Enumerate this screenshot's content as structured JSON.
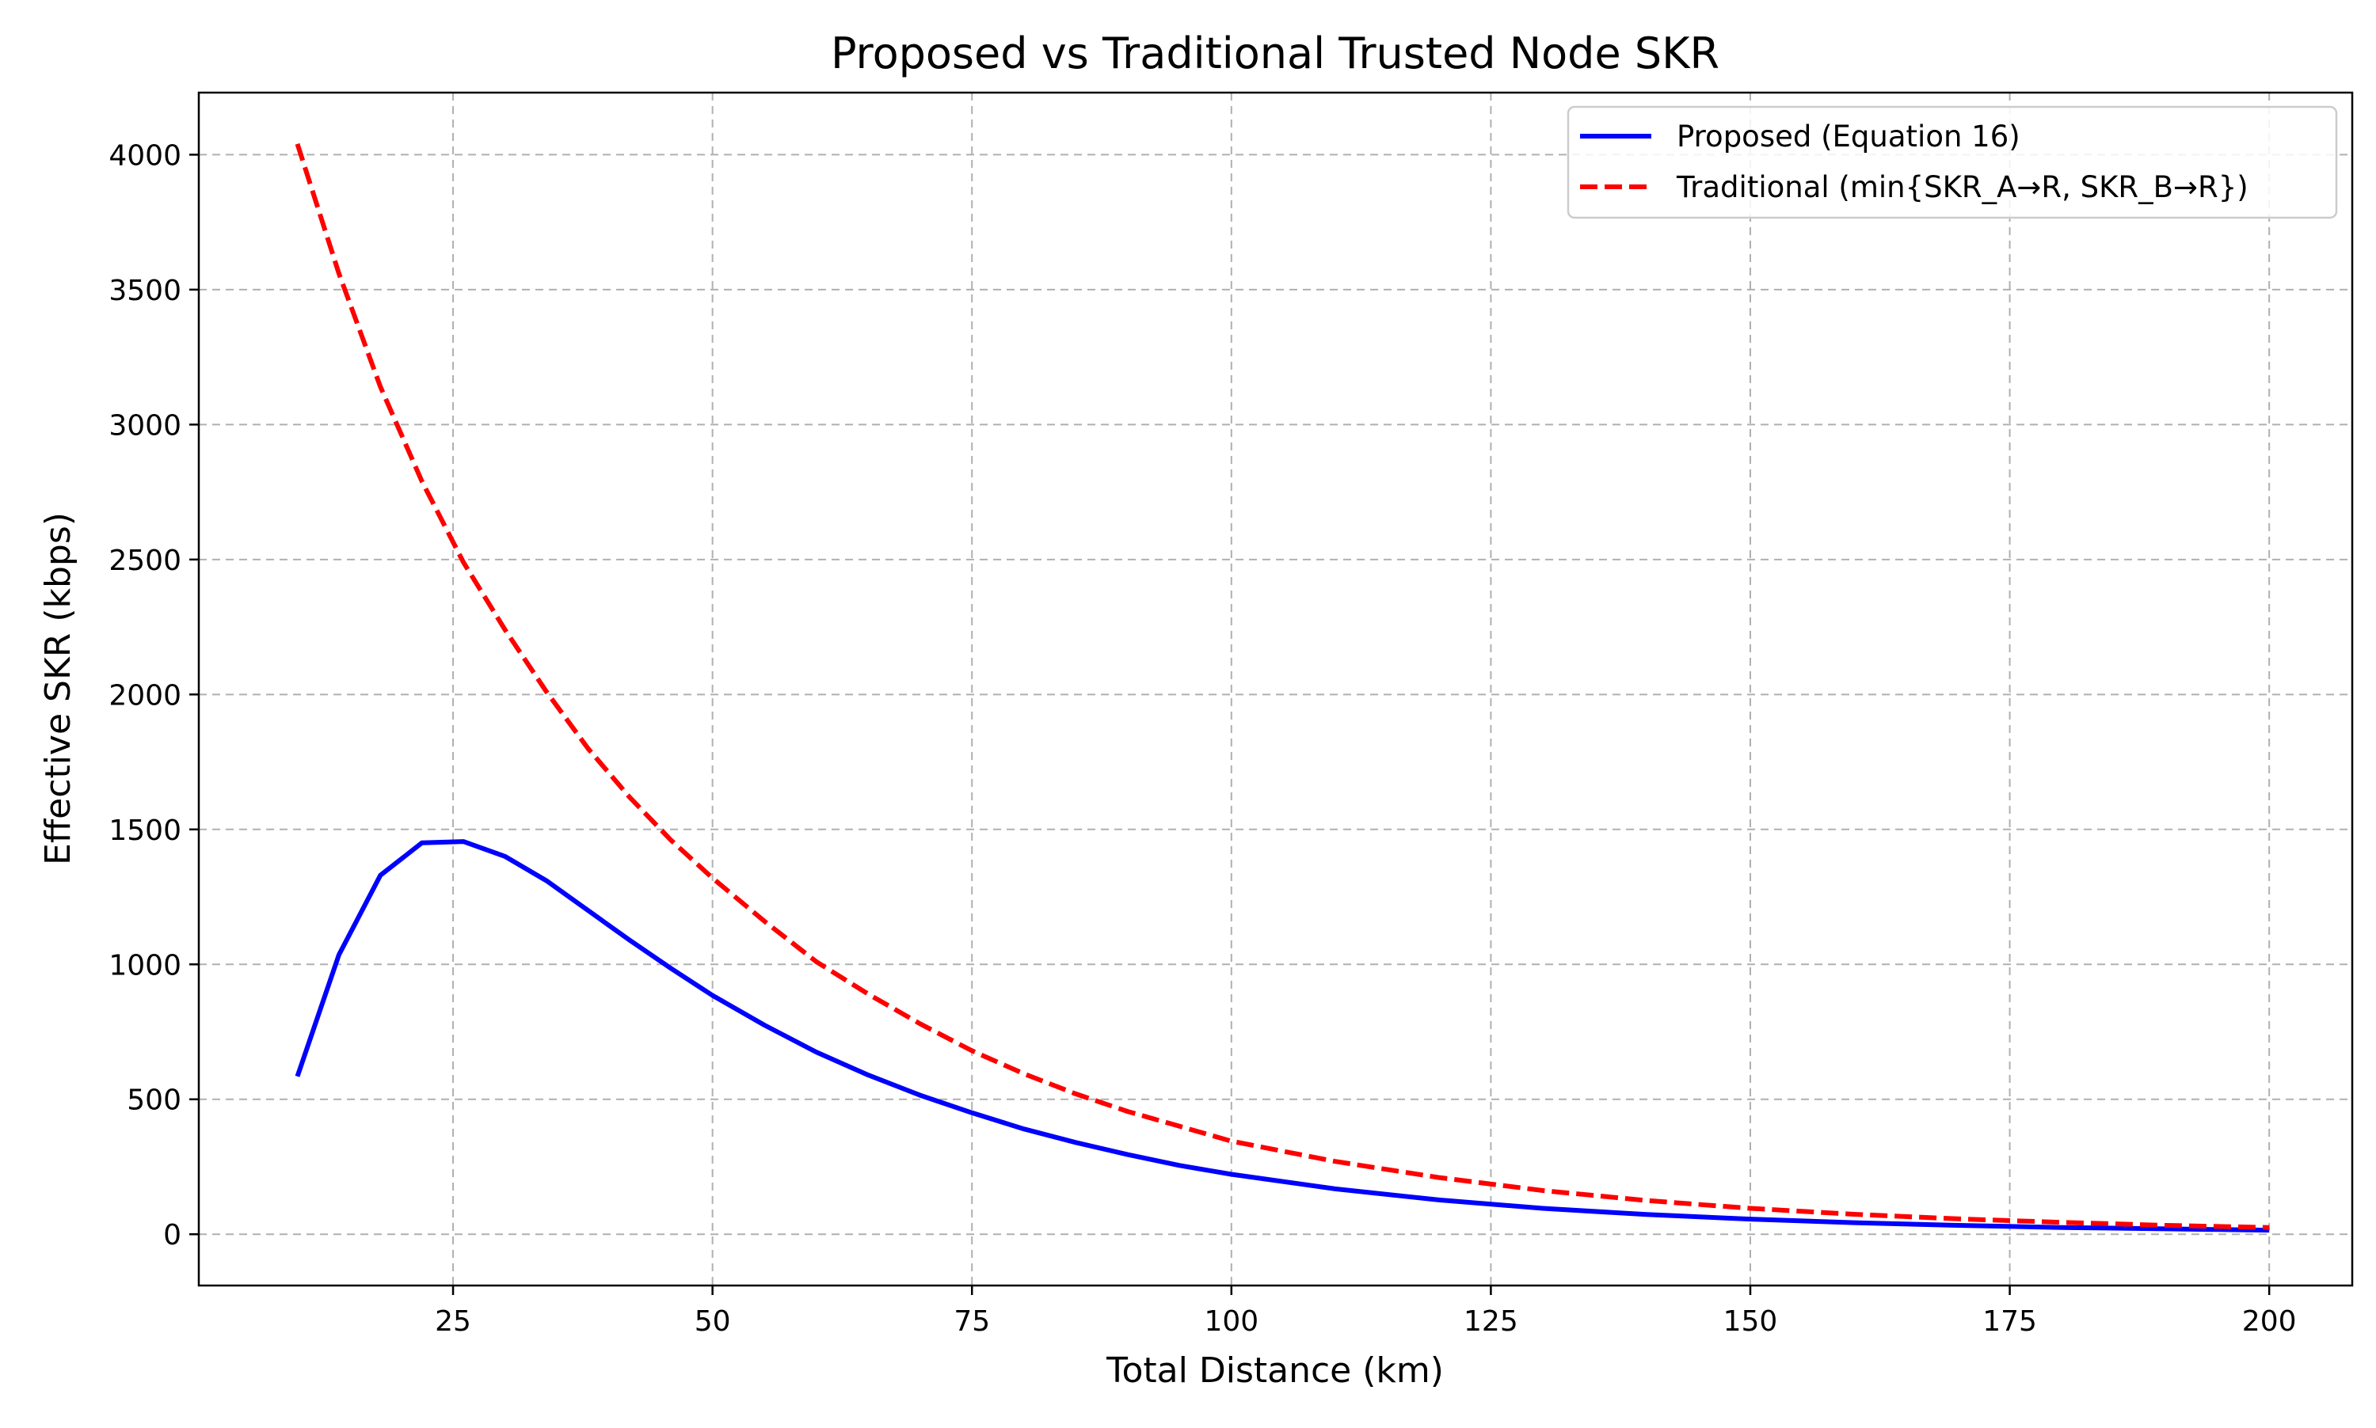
{
  "chart_data": {
    "type": "line",
    "title": "Proposed vs Traditional Trusted Node SKR",
    "xlabel": "Total Distance (km)",
    "ylabel": "Effective SKR (kbps)",
    "xlim": [
      0.5,
      208
    ],
    "ylim": [
      -190,
      4230
    ],
    "xticks": [
      25,
      50,
      75,
      100,
      125,
      150,
      175,
      200
    ],
    "yticks": [
      0,
      500,
      1000,
      1500,
      2000,
      2500,
      3000,
      3500,
      4000
    ],
    "grid": true,
    "legend_position": "top-right",
    "series": [
      {
        "name": "Proposed (Equation 16)",
        "color": "#0000ff",
        "line_style": "solid",
        "x": [
          10,
          14,
          18,
          22,
          26,
          30,
          34,
          38,
          42,
          46,
          50,
          55,
          60,
          65,
          70,
          75,
          80,
          85,
          90,
          95,
          100,
          110,
          120,
          130,
          140,
          150,
          160,
          170,
          180,
          190,
          200
        ],
        "y": [
          585,
          1035,
          1330,
          1450,
          1455,
          1400,
          1310,
          1200,
          1090,
          985,
          885,
          775,
          675,
          590,
          515,
          450,
          390,
          340,
          295,
          255,
          222,
          168,
          127,
          96,
          73,
          56,
          43,
          33,
          25,
          20,
          15
        ]
      },
      {
        "name": "Traditional (min{SKR_A→R, SKR_B→R})",
        "color": "#ff0000",
        "line_style": "dashed",
        "x": [
          10,
          14,
          18,
          22,
          26,
          30,
          34,
          38,
          42,
          46,
          50,
          55,
          60,
          65,
          70,
          75,
          80,
          85,
          90,
          95,
          100,
          110,
          120,
          130,
          140,
          150,
          160,
          170,
          180,
          190,
          200
        ],
        "y": [
          4040,
          3560,
          3140,
          2790,
          2490,
          2240,
          2010,
          1800,
          1620,
          1460,
          1320,
          1160,
          1010,
          890,
          780,
          680,
          595,
          520,
          455,
          400,
          345,
          270,
          210,
          162,
          125,
          96,
          74,
          57,
          44,
          33,
          25
        ]
      }
    ]
  }
}
